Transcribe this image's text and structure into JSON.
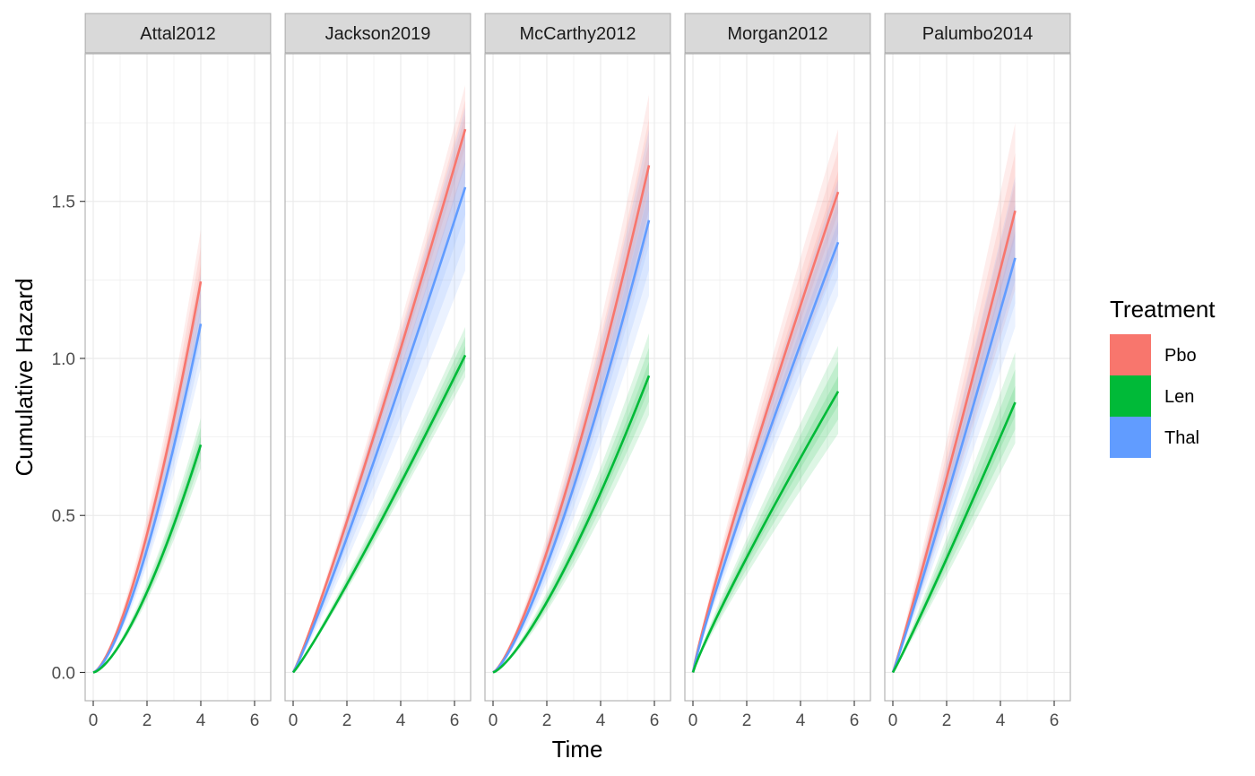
{
  "chart_data": {
    "type": "line",
    "xlabel": "Time",
    "ylabel": "Cumulative Hazard",
    "xlim": [
      -0.3,
      6.6
    ],
    "ylim": [
      -0.09,
      1.97
    ],
    "x_ticks": [
      0,
      2,
      4,
      6
    ],
    "y_ticks": [
      0.0,
      0.5,
      1.0,
      1.5
    ],
    "y_tick_labels": [
      "0.0",
      "0.5",
      "1.0",
      "1.5"
    ],
    "grid": true,
    "legend": {
      "title": "Treatment",
      "position": "right",
      "entries": [
        {
          "name": "Pbo",
          "color": "#F8766D"
        },
        {
          "name": "Len",
          "color": "#00BA38"
        },
        {
          "name": "Thal",
          "color": "#619CFF"
        }
      ]
    },
    "facets": [
      {
        "label": "Attal2012",
        "t_end": 4.0,
        "shape": 1.5,
        "series": [
          {
            "name": "Pbo",
            "end": 1.245,
            "lo": 1.1,
            "hi": 1.41
          },
          {
            "name": "Thal",
            "end": 1.11,
            "lo": 0.97,
            "hi": 1.27
          },
          {
            "name": "Len",
            "end": 0.725,
            "lo": 0.65,
            "hi": 0.81
          }
        ]
      },
      {
        "label": "Jackson2019",
        "t_end": 6.4,
        "shape": 1.1,
        "series": [
          {
            "name": "Pbo",
            "end": 1.73,
            "lo": 1.56,
            "hi": 1.87
          },
          {
            "name": "Thal",
            "end": 1.545,
            "lo": 1.28,
            "hi": 1.8
          },
          {
            "name": "Len",
            "end": 1.01,
            "lo": 0.94,
            "hi": 1.1
          }
        ]
      },
      {
        "label": "McCarthy2012",
        "t_end": 5.8,
        "shape": 1.35,
        "series": [
          {
            "name": "Pbo",
            "end": 1.615,
            "lo": 1.4,
            "hi": 1.84
          },
          {
            "name": "Thal",
            "end": 1.44,
            "lo": 1.2,
            "hi": 1.73
          },
          {
            "name": "Len",
            "end": 0.945,
            "lo": 0.82,
            "hi": 1.08
          }
        ]
      },
      {
        "label": "Morgan2012",
        "t_end": 5.4,
        "shape": 0.9,
        "series": [
          {
            "name": "Pbo",
            "end": 1.53,
            "lo": 1.33,
            "hi": 1.73
          },
          {
            "name": "Thal",
            "end": 1.37,
            "lo": 1.2,
            "hi": 1.57
          },
          {
            "name": "Len",
            "end": 0.895,
            "lo": 0.76,
            "hi": 1.04
          }
        ]
      },
      {
        "label": "Palumbo2014",
        "t_end": 4.55,
        "shape": 1.05,
        "series": [
          {
            "name": "Pbo",
            "end": 1.47,
            "lo": 1.22,
            "hi": 1.75
          },
          {
            "name": "Thal",
            "end": 1.32,
            "lo": 1.1,
            "hi": 1.58
          },
          {
            "name": "Len",
            "end": 0.86,
            "lo": 0.73,
            "hi": 1.02
          }
        ]
      }
    ]
  }
}
